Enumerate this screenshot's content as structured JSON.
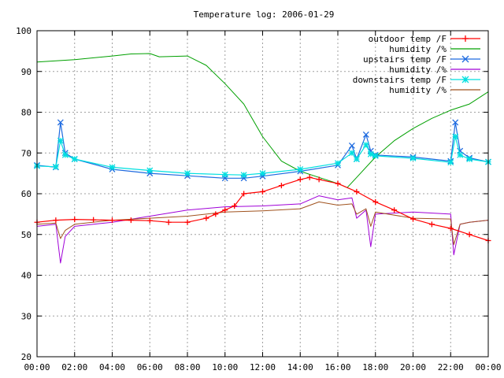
{
  "chart_data": {
    "type": "line",
    "title": "Temperature log: 2006-01-29",
    "xlabel": "",
    "ylabel": "",
    "xlim": [
      "00:00",
      "24:00"
    ],
    "ylim": [
      20,
      100
    ],
    "x_ticks": [
      "00:00",
      "02:00",
      "04:00",
      "06:00",
      "08:00",
      "10:00",
      "12:00",
      "14:00",
      "16:00",
      "18:00",
      "20:00",
      "22:00",
      "00:00"
    ],
    "y_ticks": [
      "20",
      "30",
      "40",
      "50",
      "60",
      "70",
      "80",
      "90",
      "100"
    ],
    "grid": true,
    "legend_position": "top-right",
    "series": [
      {
        "name": "outdoor temp /F",
        "color": "#ff0000",
        "marker": "plus",
        "x": [
          "00:00",
          "01:00",
          "02:00",
          "03:00",
          "04:00",
          "05:00",
          "06:00",
          "07:00",
          "08:00",
          "09:00",
          "09:30",
          "10:00",
          "10:30",
          "11:00",
          "12:00",
          "13:00",
          "14:00",
          "14:30",
          "15:00",
          "16:00",
          "17:00",
          "18:00",
          "19:00",
          "20:00",
          "21:00",
          "22:00",
          "23:00",
          "24:00"
        ],
        "values": [
          53,
          53.5,
          53.7,
          53.6,
          53.5,
          53.5,
          53.4,
          53,
          53,
          54,
          55,
          56,
          57,
          60,
          60.5,
          62,
          63.5,
          64,
          63.5,
          62.5,
          60.5,
          58,
          56,
          53.8,
          52.5,
          51.5,
          50,
          48.5
        ]
      },
      {
        "name": "humidity /%",
        "color": "#00a000",
        "marker": "none",
        "x": [
          "00:00",
          "02:00",
          "04:00",
          "05:00",
          "06:00",
          "06:30",
          "08:00",
          "09:00",
          "10:00",
          "11:00",
          "12:00",
          "13:00",
          "14:00",
          "15:00",
          "16:00",
          "16:30",
          "17:00",
          "18:00",
          "19:00",
          "20:00",
          "21:00",
          "22:00",
          "23:00",
          "24:00"
        ],
        "values": [
          92.3,
          92.9,
          93.8,
          94.3,
          94.4,
          93.6,
          93.8,
          91.5,
          87,
          82,
          74,
          68,
          65.5,
          64,
          62.5,
          61.5,
          64,
          69,
          73,
          76,
          78.5,
          80.5,
          82,
          85
        ]
      },
      {
        "name": "upstairs temp /F",
        "color": "#1f6be0",
        "marker": "x",
        "x": [
          "00:00",
          "01:00",
          "01:15",
          "01:30",
          "02:00",
          "04:00",
          "06:00",
          "08:00",
          "10:00",
          "11:00",
          "12:00",
          "14:00",
          "16:00",
          "16:45",
          "17:00",
          "17:30",
          "17:45",
          "18:00",
          "20:00",
          "22:00",
          "22:15",
          "22:30",
          "23:00",
          "24:00"
        ],
        "values": [
          67,
          66.5,
          77.5,
          70,
          68.5,
          66,
          65,
          64.4,
          63.8,
          63.8,
          64.3,
          65.5,
          67,
          71.8,
          68.5,
          74.5,
          70.5,
          69.5,
          69,
          68,
          77.5,
          70.5,
          68.8,
          67.8
        ]
      },
      {
        "name": "humidity /%",
        "color": "#a000d8",
        "marker": "none",
        "x": [
          "00:00",
          "01:00",
          "01:15",
          "01:30",
          "02:00",
          "04:00",
          "06:00",
          "08:00",
          "10:00",
          "12:00",
          "14:00",
          "15:00",
          "16:00",
          "16:45",
          "17:00",
          "17:30",
          "17:45",
          "18:00",
          "20:00",
          "22:00",
          "22:10",
          "22:30",
          "23:00",
          "24:00"
        ],
        "values": [
          52,
          52.5,
          43,
          49.5,
          52,
          53,
          54.5,
          56,
          56.8,
          57,
          57.5,
          59.5,
          58.5,
          59,
          54,
          56,
          47,
          55,
          55.5,
          55,
          45,
          52.5,
          53,
          53.5
        ]
      },
      {
        "name": "downstairs temp /F",
        "color": "#00e0e0",
        "marker": "star",
        "x": [
          "00:00",
          "01:00",
          "01:15",
          "01:30",
          "02:00",
          "04:00",
          "06:00",
          "08:00",
          "10:00",
          "11:00",
          "12:00",
          "14:00",
          "16:00",
          "16:45",
          "17:00",
          "17:30",
          "17:45",
          "18:00",
          "20:00",
          "22:00",
          "22:15",
          "22:30",
          "23:00",
          "24:00"
        ],
        "values": [
          66.8,
          66.6,
          73,
          69.5,
          68.5,
          66.5,
          65.7,
          65,
          64.7,
          64.6,
          65,
          66,
          67.5,
          70,
          68.5,
          72,
          69.7,
          69.3,
          68.7,
          67.7,
          74,
          69.5,
          68.5,
          67.8
        ]
      },
      {
        "name": "humidity /%",
        "color": "#a0521e",
        "marker": "none",
        "x": [
          "00:00",
          "01:00",
          "01:15",
          "01:30",
          "02:00",
          "04:00",
          "06:00",
          "08:00",
          "10:00",
          "12:00",
          "14:00",
          "15:00",
          "16:00",
          "16:45",
          "17:00",
          "17:30",
          "17:45",
          "18:00",
          "20:00",
          "22:00",
          "22:10",
          "22:30",
          "23:00",
          "24:00"
        ],
        "values": [
          52.5,
          52.8,
          49,
          51,
          52.5,
          53.5,
          54,
          54.5,
          55.5,
          55.8,
          56.3,
          58,
          57.2,
          57.5,
          55,
          56.3,
          52,
          55.5,
          54,
          53.8,
          47.5,
          52.5,
          53,
          53.5
        ]
      }
    ]
  }
}
